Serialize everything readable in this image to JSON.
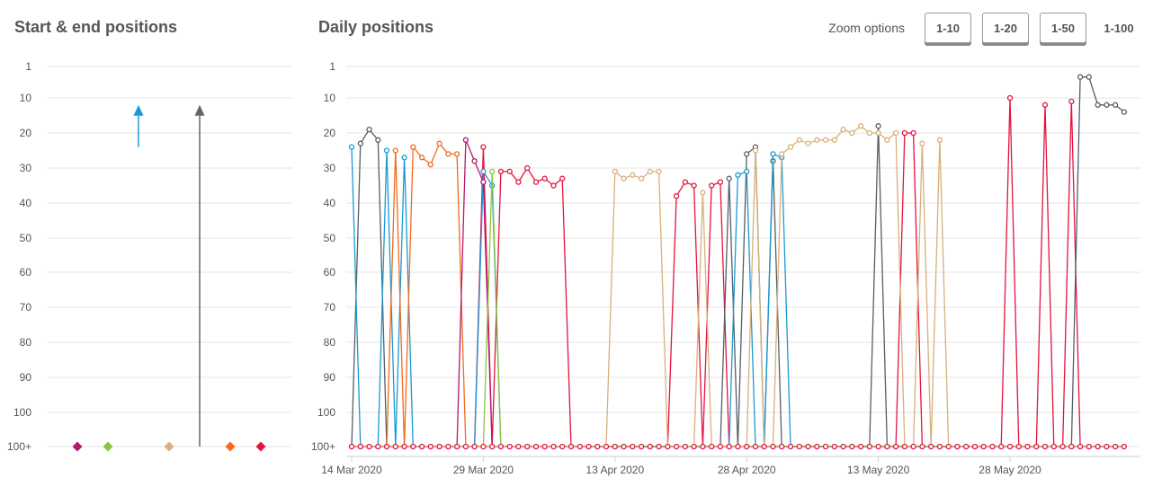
{
  "left_panel": {
    "title": "Start & end positions"
  },
  "right_panel": {
    "title": "Daily positions"
  },
  "zoom": {
    "label": "Zoom options",
    "options": [
      "1-10",
      "1-20",
      "1-50"
    ],
    "active": "1-100"
  },
  "colors": {
    "grid": "#e4e4e4",
    "arrow_blue": "#1a9ad6",
    "arrow_gray": "#666666"
  },
  "chart_data": [
    {
      "type": "scatter",
      "title": "Start & end positions",
      "y_ticks": [
        "1",
        "10",
        "20",
        "30",
        "40",
        "50",
        "60",
        "70",
        "80",
        "90",
        "100",
        "100+"
      ],
      "ylim": [
        1,
        "100+"
      ],
      "grid": true,
      "markers": [
        {
          "color": "#b5176f",
          "value": "100+"
        },
        {
          "color": "#8cc63f",
          "value": "100+"
        },
        {
          "color": "#d8b07a",
          "value": "100+"
        },
        {
          "color": "#f26b1d",
          "value": "100+"
        },
        {
          "color": "#e3143f",
          "value": "100+"
        }
      ],
      "arrows": [
        {
          "color": "#1a9ad6",
          "start": 24,
          "end": 13
        },
        {
          "color": "#666666",
          "start": "100+",
          "end": 13
        }
      ]
    },
    {
      "type": "line",
      "title": "Daily positions",
      "x_ticks": [
        "14 Mar 2020",
        "29 Mar 2020",
        "13 Apr 2020",
        "28 Apr 2020",
        "13 May 2020",
        "28 May 2020"
      ],
      "x_range": [
        "2020-03-14",
        "2020-06-10"
      ],
      "y_ticks": [
        "1",
        "10",
        "20",
        "30",
        "40",
        "50",
        "60",
        "70",
        "80",
        "90",
        "100",
        "100+"
      ],
      "ylim": [
        1,
        "100+"
      ],
      "grid": true,
      "series": [
        {
          "color": "#e3143f",
          "points": [
            [
              "2020-03-29",
              24
            ],
            [
              "2020-03-31",
              31
            ],
            [
              "2020-04-01",
              31
            ],
            [
              "2020-04-02",
              34
            ],
            [
              "2020-04-03",
              30
            ],
            [
              "2020-04-04",
              34
            ],
            [
              "2020-04-05",
              33
            ],
            [
              "2020-04-06",
              35
            ],
            [
              "2020-04-07",
              33
            ],
            [
              "2020-04-20",
              38
            ],
            [
              "2020-04-21",
              34
            ],
            [
              "2020-04-22",
              35
            ],
            [
              "2020-04-24",
              35
            ],
            [
              "2020-04-25",
              34
            ],
            [
              "2020-05-16",
              20
            ],
            [
              "2020-05-17",
              20
            ],
            [
              "2020-05-28",
              10
            ],
            [
              "2020-06-01",
              12
            ],
            [
              "2020-06-04",
              11
            ]
          ]
        },
        {
          "color": "#555f68",
          "points": [
            [
              "2020-03-15",
              23
            ],
            [
              "2020-03-16",
              19
            ],
            [
              "2020-03-17",
              22
            ],
            [
              "2020-04-26",
              33
            ],
            [
              "2020-04-28",
              26
            ],
            [
              "2020-04-29",
              24
            ],
            [
              "2020-05-01",
              28
            ],
            [
              "2020-05-13",
              18
            ],
            [
              "2020-06-05",
              4
            ],
            [
              "2020-06-06",
              4
            ],
            [
              "2020-06-07",
              12
            ],
            [
              "2020-06-08",
              12
            ],
            [
              "2020-06-09",
              12
            ],
            [
              "2020-06-10",
              14
            ]
          ]
        },
        {
          "color": "#1a9ad6",
          "points": [
            [
              "2020-03-14",
              24
            ],
            [
              "2020-03-18",
              25
            ],
            [
              "2020-03-20",
              27
            ],
            [
              "2020-03-29",
              31
            ],
            [
              "2020-03-30",
              35
            ],
            [
              "2020-04-27",
              32
            ],
            [
              "2020-04-28",
              31
            ],
            [
              "2020-05-01",
              26
            ],
            [
              "2020-05-02",
              27
            ]
          ]
        },
        {
          "color": "#f26b1d",
          "points": [
            [
              "2020-03-19",
              25
            ],
            [
              "2020-03-21",
              24
            ],
            [
              "2020-03-22",
              27
            ],
            [
              "2020-03-23",
              29
            ],
            [
              "2020-03-24",
              23
            ],
            [
              "2020-03-25",
              26
            ],
            [
              "2020-03-26",
              26
            ]
          ]
        },
        {
          "color": "#b5176f",
          "points": [
            [
              "2020-03-27",
              22
            ],
            [
              "2020-03-28",
              28
            ],
            [
              "2020-03-29",
              34
            ]
          ]
        },
        {
          "color": "#8cc63f",
          "points": [
            [
              "2020-03-30",
              31
            ]
          ]
        },
        {
          "color": "#d8b07a",
          "points": [
            [
              "2020-04-13",
              31
            ],
            [
              "2020-04-14",
              33
            ],
            [
              "2020-04-15",
              32
            ],
            [
              "2020-04-16",
              33
            ],
            [
              "2020-04-17",
              31
            ],
            [
              "2020-04-18",
              31
            ],
            [
              "2020-04-23",
              37
            ],
            [
              "2020-04-29",
              25
            ],
            [
              "2020-05-02",
              26
            ],
            [
              "2020-05-03",
              24
            ],
            [
              "2020-05-04",
              22
            ],
            [
              "2020-05-05",
              23
            ],
            [
              "2020-05-06",
              22
            ],
            [
              "2020-05-07",
              22
            ],
            [
              "2020-05-08",
              22
            ],
            [
              "2020-05-09",
              19
            ],
            [
              "2020-05-10",
              20
            ],
            [
              "2020-05-11",
              18
            ],
            [
              "2020-05-12",
              20
            ],
            [
              "2020-05-13",
              20
            ],
            [
              "2020-05-14",
              22
            ],
            [
              "2020-05-15",
              20
            ],
            [
              "2020-05-18",
              23
            ],
            [
              "2020-05-20",
              22
            ]
          ]
        }
      ]
    }
  ]
}
